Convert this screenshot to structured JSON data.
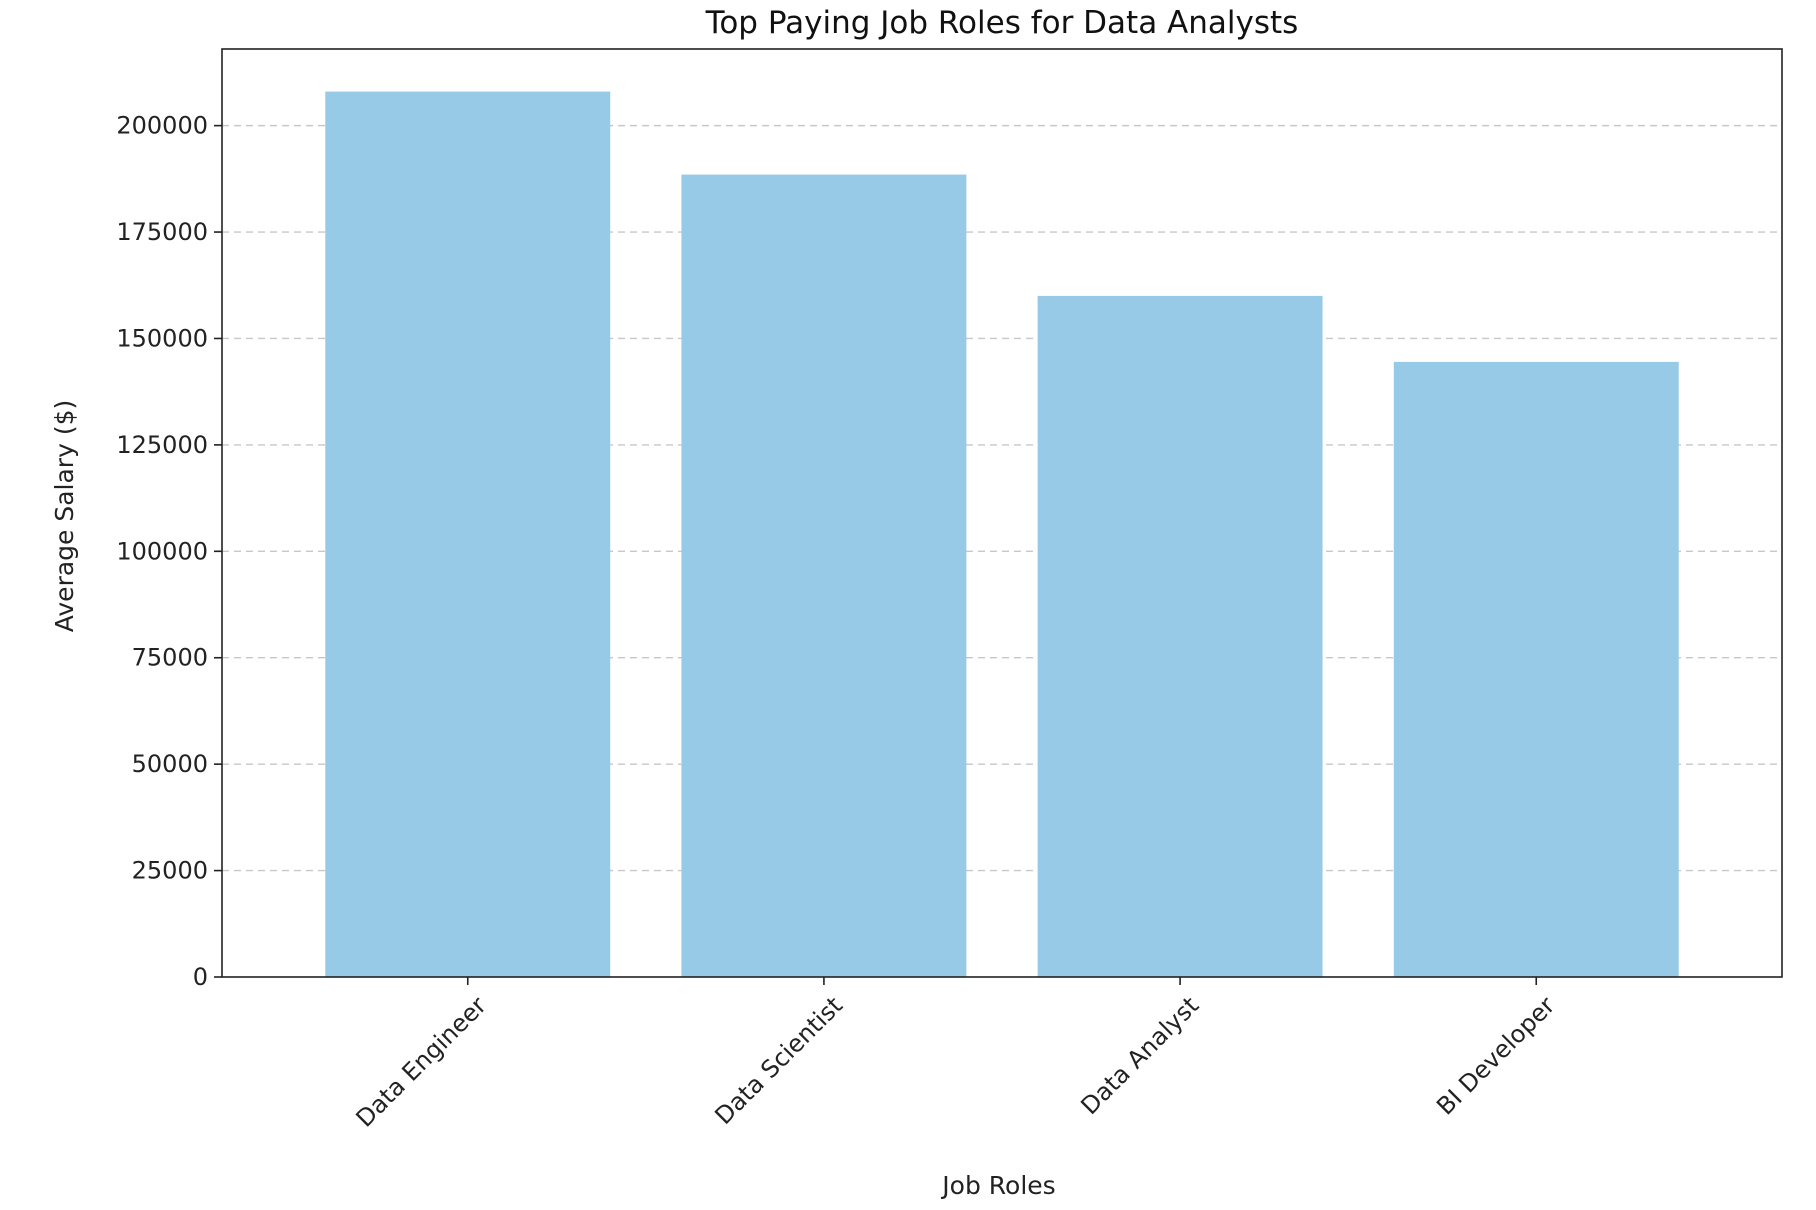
{
  "chart_data": {
    "type": "bar",
    "title": "Top Paying Job Roles for Data Analysts",
    "xlabel": "Job Roles",
    "ylabel": "Average Salary ($)",
    "categories": [
      "Data Engineer",
      "Data Scientist",
      "Data Analyst",
      "BI Developer"
    ],
    "values": [
      208000,
      188500,
      160000,
      144500
    ],
    "ylim": [
      0,
      218000
    ],
    "yticks": [
      0,
      25000,
      50000,
      75000,
      100000,
      125000,
      150000,
      175000,
      200000
    ],
    "ytick_labels": [
      "0",
      "25000",
      "50000",
      "75000",
      "100000",
      "125000",
      "150000",
      "175000",
      "200000"
    ],
    "grid": {
      "axis": "y",
      "style": "dashed",
      "color": "#c8c8c8"
    },
    "bar_color": "#97cae6",
    "xtick_rotation_deg": -45
  }
}
